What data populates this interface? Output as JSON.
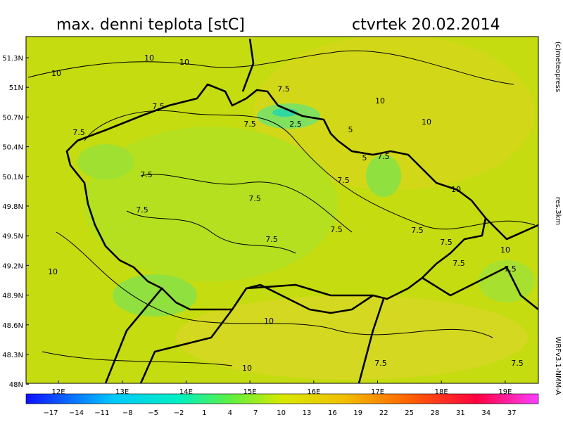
{
  "header": {
    "title": "max. denni teplota [stC]",
    "date": "ctvrtek 20.02.2014"
  },
  "lat_labels": [
    "51.3N",
    "51N",
    "50.7N",
    "50.4N",
    "50.1N",
    "49.8N",
    "49.5N",
    "49.2N",
    "48.9N",
    "48.6N",
    "48.3N",
    "48N"
  ],
  "lon_labels": [
    "12E",
    "13E",
    "14E",
    "15E",
    "16E",
    "17E",
    "18E",
    "19E"
  ],
  "side_texts": [
    "(c)meteopress",
    "res.3km",
    "WRFv3.1-NMM-A"
  ],
  "contour_labels": [
    "10",
    "10",
    "10",
    "7.5",
    "7.5",
    "7.5",
    "2.5",
    "5",
    "5",
    "7.5",
    "10",
    "10",
    "10",
    "7.5",
    "7.5",
    "7.5",
    "7.5",
    "7.5",
    "7.5",
    "7.5",
    "7.5",
    "7.5",
    "7.5",
    "10",
    "7.5",
    "10",
    "10",
    "10",
    "7.5",
    "7.5"
  ],
  "colorbar_labels": [
    "−17",
    "−14",
    "−11",
    "−8",
    "−5",
    "−2",
    "1",
    "4",
    "7",
    "10",
    "13",
    "16",
    "19",
    "22",
    "25",
    "28",
    "31",
    "34",
    "37"
  ]
}
